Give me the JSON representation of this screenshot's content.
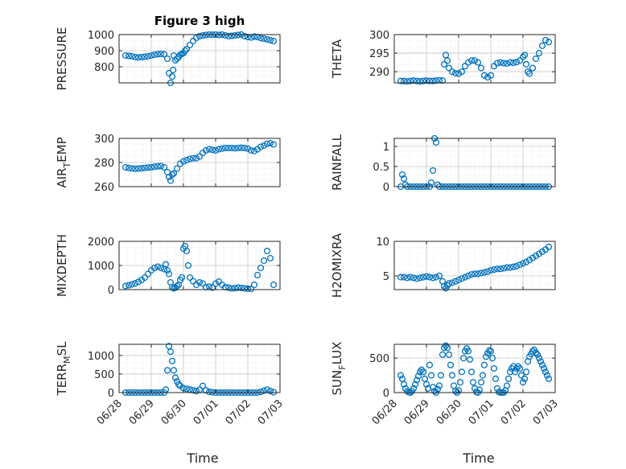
{
  "chart_data": [
    {
      "id": "pressure",
      "type": "scatter",
      "title": "Figure 3 high",
      "ylabel": "PRESSURE",
      "ylim": [
        700,
        1000
      ],
      "yticks": [
        800,
        900,
        1000
      ],
      "x_start": "2020-06-28",
      "xlim": [
        0,
        5
      ],
      "xticks": [
        "06/28",
        "06/29",
        "06/30",
        "07/01",
        "07/02",
        "07/03"
      ],
      "xlabel": "",
      "x": [
        0.2,
        0.3,
        0.4,
        0.5,
        0.6,
        0.7,
        0.8,
        0.9,
        1.0,
        1.1,
        1.2,
        1.3,
        1.4,
        1.5,
        1.55,
        1.6,
        1.65,
        1.68,
        1.7,
        1.75,
        1.8,
        1.85,
        1.9,
        1.95,
        2.0,
        2.05,
        2.1,
        2.2,
        2.3,
        2.4,
        2.5,
        2.6,
        2.7,
        2.8,
        2.9,
        3.0,
        3.1,
        3.2,
        3.3,
        3.4,
        3.5,
        3.6,
        3.7,
        3.8,
        3.9,
        4.0,
        4.1,
        4.2,
        4.3,
        4.4,
        4.5,
        4.6,
        4.7,
        4.8
      ],
      "y": [
        870,
        868,
        865,
        860,
        858,
        860,
        862,
        865,
        870,
        875,
        878,
        880,
        878,
        850,
        760,
        700,
        740,
        780,
        870,
        840,
        850,
        860,
        875,
        880,
        885,
        900,
        910,
        935,
        960,
        980,
        990,
        995,
        998,
        1000,
        999,
        1000,
        998,
        1000,
        995,
        990,
        992,
        995,
        998,
        1000,
        990,
        985,
        982,
        988,
        985,
        978,
        975,
        970,
        965,
        960
      ]
    },
    {
      "id": "theta",
      "type": "scatter",
      "title": "",
      "ylabel": "THETA",
      "ylim": [
        287,
        300
      ],
      "yticks": [
        290,
        295,
        300
      ],
      "x_start": "2020-06-28",
      "xlim": [
        0,
        5
      ],
      "xticks": [
        "06/28",
        "06/29",
        "06/30",
        "07/01",
        "07/02",
        "07/03"
      ],
      "xlabel": "",
      "x": [
        0.2,
        0.3,
        0.4,
        0.5,
        0.6,
        0.7,
        0.8,
        0.9,
        1.0,
        1.1,
        1.2,
        1.3,
        1.4,
        1.5,
        1.55,
        1.6,
        1.65,
        1.7,
        1.8,
        1.9,
        2.0,
        2.1,
        2.2,
        2.3,
        2.4,
        2.5,
        2.6,
        2.7,
        2.8,
        2.9,
        3.0,
        3.1,
        3.2,
        3.3,
        3.4,
        3.5,
        3.6,
        3.7,
        3.8,
        3.9,
        4.0,
        4.05,
        4.1,
        4.15,
        4.2,
        4.3,
        4.4,
        4.5,
        4.6,
        4.7,
        4.8
      ],
      "y": [
        287.5,
        287.5,
        287.4,
        287.5,
        287.6,
        287.5,
        287.4,
        287.5,
        287.6,
        287.5,
        287.5,
        287.6,
        287.7,
        287.6,
        292,
        294.5,
        293,
        291,
        290,
        289.6,
        289.5,
        290,
        291.5,
        292.5,
        293,
        293,
        292.5,
        291,
        289,
        288.5,
        289,
        291.5,
        292.3,
        292.5,
        292.3,
        292.2,
        292.5,
        292.4,
        292.6,
        293,
        294,
        294.5,
        292,
        290,
        289.5,
        291,
        293.5,
        295,
        297,
        298.5,
        298
      ]
    },
    {
      "id": "air_temp",
      "type": "scatter",
      "title": "",
      "ylabel": "AIR_TEMP",
      "ylim": [
        260,
        300
      ],
      "yticks": [
        260,
        280,
        300
      ],
      "x_start": "2020-06-28",
      "xlim": [
        0,
        5
      ],
      "xticks": [
        "06/28",
        "06/29",
        "06/30",
        "07/01",
        "07/02",
        "07/03"
      ],
      "xlabel": "",
      "x": [
        0.2,
        0.3,
        0.4,
        0.5,
        0.6,
        0.7,
        0.8,
        0.9,
        1.0,
        1.1,
        1.2,
        1.3,
        1.4,
        1.5,
        1.55,
        1.6,
        1.65,
        1.7,
        1.8,
        1.9,
        2.0,
        2.1,
        2.2,
        2.3,
        2.4,
        2.5,
        2.6,
        2.7,
        2.8,
        2.9,
        3.0,
        3.1,
        3.2,
        3.3,
        3.4,
        3.5,
        3.6,
        3.7,
        3.8,
        3.9,
        4.0,
        4.1,
        4.2,
        4.3,
        4.4,
        4.5,
        4.6,
        4.7,
        4.8
      ],
      "y": [
        276,
        275.5,
        275,
        274.8,
        275,
        275.2,
        275.5,
        275.8,
        276,
        276.5,
        276.8,
        277,
        276,
        272,
        268,
        265,
        270,
        271,
        275,
        279,
        281,
        282,
        283,
        283.5,
        283.5,
        285,
        288,
        290,
        291,
        290.5,
        290,
        291,
        291.5,
        292,
        292,
        292,
        291.8,
        292,
        292.2,
        292,
        291.5,
        290,
        289.5,
        291,
        293,
        294,
        295.5,
        296,
        295
      ]
    },
    {
      "id": "rainfall",
      "type": "scatter",
      "title": "",
      "ylabel": "RAINFALL",
      "ylim": [
        0,
        1.2
      ],
      "yticks": [
        0,
        0.5,
        1
      ],
      "x_start": "2020-06-28",
      "xlim": [
        0,
        5
      ],
      "xticks": [
        "06/28",
        "06/29",
        "06/30",
        "07/01",
        "07/02",
        "07/03"
      ],
      "xlabel": "",
      "x": [
        0.2,
        0.25,
        0.3,
        0.35,
        0.4,
        0.5,
        0.6,
        0.7,
        0.8,
        0.9,
        1.0,
        1.1,
        1.15,
        1.2,
        1.25,
        1.3,
        1.35,
        1.4,
        1.5,
        1.6,
        1.7,
        1.8,
        1.9,
        2.0,
        2.1,
        2.2,
        2.3,
        2.4,
        2.5,
        2.6,
        2.7,
        2.8,
        2.9,
        3.0,
        3.1,
        3.2,
        3.3,
        3.4,
        3.5,
        3.6,
        3.7,
        3.8,
        3.9,
        4.0,
        4.1,
        4.2,
        4.3,
        4.4,
        4.5,
        4.6,
        4.7,
        4.8
      ],
      "y": [
        0,
        0.3,
        0.2,
        0.05,
        0,
        0,
        0,
        0,
        0,
        0,
        0,
        0,
        0.1,
        0.4,
        1.2,
        1.1,
        0.05,
        0,
        0,
        0,
        0,
        0,
        0,
        0,
        0,
        0,
        0,
        0,
        0,
        0,
        0,
        0,
        0,
        0,
        0,
        0,
        0,
        0,
        0,
        0,
        0,
        0,
        0,
        0,
        0,
        0,
        0,
        0,
        0,
        0,
        0,
        0
      ]
    },
    {
      "id": "mixdepth",
      "type": "scatter",
      "title": "",
      "ylabel": "MIXDEPTH",
      "ylim": [
        0,
        2000
      ],
      "yticks": [
        0,
        1000,
        2000
      ],
      "x_start": "2020-06-28",
      "xlim": [
        0,
        5
      ],
      "xticks": [
        "06/28",
        "06/29",
        "06/30",
        "07/01",
        "07/02",
        "07/03"
      ],
      "xlabel": "",
      "x": [
        0.2,
        0.3,
        0.4,
        0.5,
        0.6,
        0.7,
        0.8,
        0.9,
        1.0,
        1.1,
        1.2,
        1.3,
        1.4,
        1.45,
        1.5,
        1.55,
        1.6,
        1.65,
        1.7,
        1.75,
        1.8,
        1.85,
        1.9,
        1.95,
        2.0,
        2.05,
        2.1,
        2.15,
        2.2,
        2.3,
        2.4,
        2.5,
        2.6,
        2.7,
        2.8,
        2.9,
        3.0,
        3.1,
        3.2,
        3.3,
        3.4,
        3.5,
        3.6,
        3.7,
        3.8,
        3.9,
        4.0,
        4.1,
        4.2,
        4.3,
        4.4,
        4.5,
        4.6,
        4.7,
        4.8
      ],
      "y": [
        150,
        180,
        220,
        260,
        320,
        400,
        500,
        650,
        800,
        900,
        950,
        900,
        850,
        1050,
        800,
        650,
        300,
        100,
        50,
        80,
        150,
        200,
        400,
        500,
        1700,
        1800,
        1600,
        1000,
        500,
        350,
        200,
        300,
        250,
        100,
        120,
        80,
        250,
        330,
        200,
        100,
        80,
        50,
        60,
        80,
        70,
        50,
        40,
        30,
        200,
        600,
        900,
        1200,
        1600,
        1300,
        200
      ]
    },
    {
      "id": "h2omixra",
      "type": "scatter",
      "title": "",
      "ylabel": "H2OMIXRA",
      "ylim": [
        3,
        10
      ],
      "yticks": [
        5,
        10
      ],
      "x_start": "2020-06-28",
      "xlim": [
        0,
        5
      ],
      "xticks": [
        "06/28",
        "06/29",
        "06/30",
        "07/01",
        "07/02",
        "07/03"
      ],
      "xlabel": "",
      "x": [
        0.2,
        0.3,
        0.4,
        0.5,
        0.6,
        0.7,
        0.8,
        0.9,
        1.0,
        1.1,
        1.2,
        1.3,
        1.4,
        1.5,
        1.55,
        1.6,
        1.65,
        1.7,
        1.8,
        1.9,
        2.0,
        2.1,
        2.2,
        2.3,
        2.4,
        2.5,
        2.6,
        2.7,
        2.8,
        2.9,
        3.0,
        3.1,
        3.2,
        3.3,
        3.4,
        3.5,
        3.6,
        3.7,
        3.8,
        3.9,
        4.0,
        4.1,
        4.2,
        4.3,
        4.4,
        4.5,
        4.6,
        4.7,
        4.8
      ],
      "y": [
        4.8,
        4.8,
        4.7,
        4.8,
        4.7,
        4.6,
        4.7,
        4.8,
        4.9,
        4.8,
        4.7,
        4.8,
        5,
        4.2,
        3.5,
        3.2,
        3.6,
        3.9,
        4,
        4.2,
        4.4,
        4.6,
        4.8,
        5,
        5.2,
        5.3,
        5.3,
        5.4,
        5.5,
        5.6,
        5.8,
        5.9,
        6,
        6,
        6.1,
        6.2,
        6.2,
        6.3,
        6.4,
        6.6,
        6.8,
        7,
        7.3,
        7.6,
        7.9,
        8.2,
        8.5,
        8.8,
        9.2
      ]
    },
    {
      "id": "terr_msl",
      "type": "scatter",
      "title": "",
      "ylabel": "TERR_MSL",
      "ylim": [
        0,
        1300
      ],
      "yticks": [
        0,
        500,
        1000
      ],
      "x_start": "2020-06-28",
      "xlim": [
        0,
        5
      ],
      "xticks": [
        "06/28",
        "06/29",
        "06/30",
        "07/01",
        "07/02",
        "07/03"
      ],
      "xlabel": "",
      "x": [
        0.2,
        0.3,
        0.4,
        0.5,
        0.6,
        0.7,
        0.8,
        0.9,
        1.0,
        1.1,
        1.2,
        1.3,
        1.4,
        1.45,
        1.5,
        1.55,
        1.6,
        1.65,
        1.7,
        1.75,
        1.8,
        1.85,
        1.9,
        2.0,
        2.1,
        2.2,
        2.3,
        2.4,
        2.5,
        2.6,
        2.7,
        2.8,
        2.9,
        3.0,
        3.1,
        3.2,
        3.3,
        3.4,
        3.5,
        3.6,
        3.7,
        3.8,
        3.9,
        4.0,
        4.1,
        4.2,
        4.3,
        4.4,
        4.5,
        4.6,
        4.7,
        4.8
      ],
      "y": [
        0,
        0,
        0,
        0,
        0,
        0,
        0,
        0,
        0,
        0,
        0,
        0,
        0,
        80,
        600,
        1250,
        1100,
        850,
        600,
        400,
        300,
        220,
        180,
        120,
        100,
        80,
        60,
        40,
        80,
        180,
        60,
        20,
        10,
        0,
        0,
        0,
        0,
        0,
        0,
        0,
        0,
        0,
        0,
        0,
        0,
        0,
        0,
        20,
        50,
        80,
        40,
        10
      ]
    },
    {
      "id": "sun_flux",
      "type": "scatter",
      "title": "",
      "ylabel": "SUN_FLUX",
      "ylim": [
        0,
        700
      ],
      "yticks": [
        0,
        500
      ],
      "x_start": "2020-06-28",
      "xlim": [
        0,
        5
      ],
      "xticks": [
        "06/28",
        "06/29",
        "06/30",
        "07/01",
        "07/02",
        "07/03"
      ],
      "xlabel": "",
      "x": [
        0.2,
        0.25,
        0.3,
        0.35,
        0.4,
        0.45,
        0.5,
        0.55,
        0.6,
        0.65,
        0.7,
        0.75,
        0.8,
        0.85,
        0.9,
        0.95,
        1.0,
        1.05,
        1.1,
        1.15,
        1.2,
        1.25,
        1.3,
        1.35,
        1.4,
        1.45,
        1.5,
        1.55,
        1.6,
        1.65,
        1.7,
        1.75,
        1.8,
        1.85,
        1.9,
        1.95,
        2.0,
        2.05,
        2.1,
        2.15,
        2.2,
        2.25,
        2.3,
        2.35,
        2.4,
        2.45,
        2.5,
        2.55,
        2.6,
        2.65,
        2.7,
        2.75,
        2.8,
        2.85,
        2.9,
        2.95,
        3.0,
        3.05,
        3.1,
        3.15,
        3.2,
        3.25,
        3.3,
        3.35,
        3.4,
        3.45,
        3.5,
        3.55,
        3.6,
        3.65,
        3.7,
        3.75,
        3.8,
        3.85,
        3.9,
        3.95,
        4.0,
        4.05,
        4.1,
        4.15,
        4.2,
        4.25,
        4.3,
        4.35,
        4.4,
        4.45,
        4.5,
        4.55,
        4.6,
        4.65,
        4.7,
        4.75,
        4.8
      ],
      "y": [
        250,
        200,
        120,
        60,
        20,
        5,
        0,
        20,
        60,
        120,
        180,
        240,
        300,
        330,
        300,
        200,
        120,
        60,
        400,
        250,
        80,
        20,
        0,
        50,
        100,
        250,
        550,
        650,
        680,
        650,
        550,
        400,
        250,
        100,
        20,
        0,
        30,
        150,
        300,
        500,
        600,
        640,
        600,
        480,
        300,
        150,
        60,
        10,
        0,
        40,
        150,
        250,
        400,
        520,
        570,
        610,
        600,
        500,
        350,
        200,
        60,
        10,
        0,
        0,
        0,
        30,
        100,
        200,
        300,
        350,
        380,
        300,
        350,
        380,
        350,
        250,
        150,
        200,
        300,
        450,
        520,
        560,
        600,
        620,
        580,
        550,
        500,
        450,
        400,
        350,
        300,
        250,
        200
      ]
    }
  ],
  "axes": {
    "xlabel": "Time"
  }
}
